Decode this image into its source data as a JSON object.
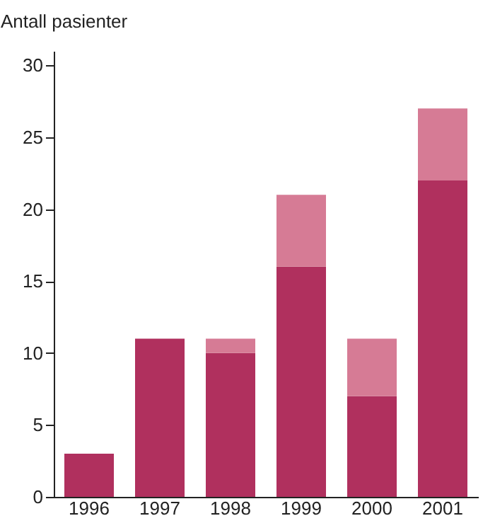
{
  "chart_data": {
    "type": "bar",
    "ylabel": "Antall pasienter",
    "stacked": true,
    "categories": [
      "1996",
      "1997",
      "1998",
      "1999",
      "2000",
      "2001"
    ],
    "series": [
      {
        "color": "#b0305e",
        "values": [
          3,
          11,
          10,
          16,
          7,
          22
        ]
      },
      {
        "color": "#d67b95",
        "values": [
          0,
          0,
          1,
          5,
          4,
          5
        ]
      }
    ],
    "ylim": [
      0,
      31
    ],
    "yticks": [
      0,
      5,
      10,
      15,
      20,
      25,
      30
    ],
    "grid": false,
    "legend": false
  }
}
